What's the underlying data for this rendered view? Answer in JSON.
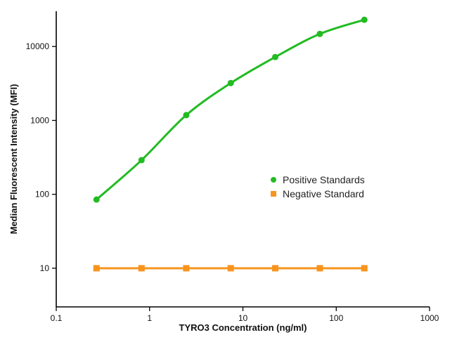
{
  "chart_data": {
    "type": "scatter",
    "xlabel": "TYRO3 Concentration (ng/ml)",
    "ylabel": "Median Fluorescent Intensity (MFI)",
    "x_scale": "log",
    "y_scale": "log",
    "xlim": [
      0.1,
      1000
    ],
    "ylim": [
      3,
      30000
    ],
    "x_ticks": [
      "0.1",
      "1",
      "10",
      "100",
      "1000"
    ],
    "y_ticks": [
      "10",
      "100",
      "1000",
      "10000"
    ],
    "grid": false,
    "legend_position": "center-right",
    "series": [
      {
        "name": "Positive Standards",
        "color": "#22bb22",
        "marker": "circle",
        "fit_curve": true,
        "x": [
          0.27,
          0.82,
          2.47,
          7.41,
          22.2,
          66.7,
          200
        ],
        "y": [
          85,
          290,
          1180,
          3200,
          7200,
          14800,
          23000
        ]
      },
      {
        "name": "Negative Standard",
        "color": "#f7941d",
        "marker": "square",
        "fit_curve": false,
        "x": [
          0.27,
          0.82,
          2.47,
          7.41,
          22.2,
          66.7,
          200
        ],
        "y": [
          10,
          10,
          10,
          10,
          10,
          10,
          10
        ]
      }
    ]
  }
}
